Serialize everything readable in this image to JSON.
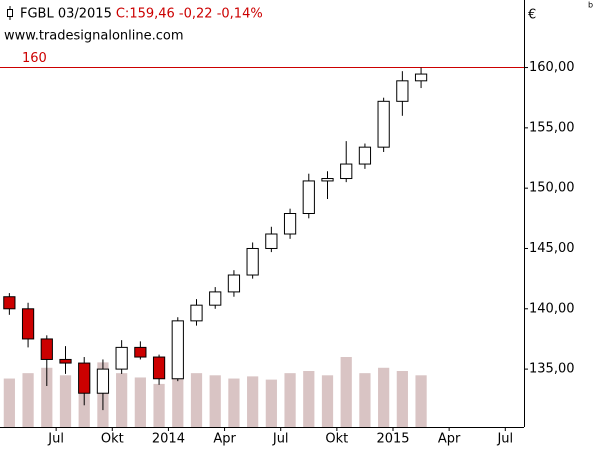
{
  "chart_data": {
    "type": "candlestick",
    "symbol": "FGBL 03/2015",
    "quote": "C:159,46 -0,22 -0,14%",
    "source": "www.tradesignalonline.com",
    "currency": "€",
    "corner_mark": "b",
    "hline": {
      "value": 160,
      "label": "160",
      "color": "#cc0000"
    },
    "x": [
      "2013-04",
      "2013-05",
      "2013-06",
      "2013-07",
      "2013-08",
      "2013-09",
      "2013-10",
      "2013-11",
      "2013-12",
      "2014-01",
      "2014-02",
      "2014-03",
      "2014-04",
      "2014-05",
      "2014-06",
      "2014-07",
      "2014-08",
      "2014-09",
      "2014-10",
      "2014-11",
      "2014-12",
      "2015-01",
      "2015-02"
    ],
    "open": [
      141.0,
      140.0,
      137.5,
      135.8,
      135.5,
      133.0,
      135.0,
      136.8,
      136.0,
      134.2,
      139.0,
      140.3,
      141.4,
      142.8,
      145.0,
      146.2,
      147.9,
      150.6,
      150.8,
      152.0,
      153.4,
      157.2,
      158.9
    ],
    "high": [
      141.3,
      140.5,
      137.8,
      136.9,
      136.0,
      135.8,
      137.4,
      137.3,
      136.2,
      139.3,
      140.8,
      141.8,
      143.2,
      145.5,
      146.8,
      148.3,
      151.2,
      151.4,
      153.9,
      153.7,
      157.5,
      159.7,
      160.0
    ],
    "low": [
      139.5,
      136.8,
      133.6,
      134.6,
      132.0,
      131.6,
      134.6,
      135.8,
      133.7,
      134.0,
      138.6,
      140.0,
      141.0,
      142.5,
      144.7,
      145.8,
      147.5,
      149.1,
      150.5,
      151.6,
      153.0,
      156.0,
      158.3
    ],
    "close": [
      140.0,
      137.5,
      135.8,
      135.5,
      133.0,
      135.0,
      136.8,
      136.0,
      134.2,
      139.0,
      140.3,
      141.4,
      142.8,
      145.0,
      146.2,
      147.9,
      150.6,
      150.8,
      152.0,
      153.4,
      157.2,
      158.9,
      159.46
    ],
    "volume": [
      45,
      50,
      55,
      48,
      52,
      60,
      50,
      46,
      40,
      55,
      50,
      48,
      45,
      47,
      44,
      50,
      52,
      48,
      65,
      50,
      55,
      52,
      48
    ],
    "up_color": "#ffffff",
    "down_color": "#cc0000",
    "volume_color": "#d9c4c4",
    "xlim": [
      "2013-04",
      "2015-08"
    ],
    "xticks": [
      {
        "value": "2013-07",
        "label": "Jul"
      },
      {
        "value": "2013-10",
        "label": "Okt"
      },
      {
        "value": "2014-01",
        "label": "2014"
      },
      {
        "value": "2014-04",
        "label": "Apr"
      },
      {
        "value": "2014-07",
        "label": "Jul"
      },
      {
        "value": "2014-10",
        "label": "Okt"
      },
      {
        "value": "2015-01",
        "label": "2015"
      },
      {
        "value": "2015-04",
        "label": "Apr"
      },
      {
        "value": "2015-07",
        "label": "Jul"
      }
    ],
    "ylim": [
      130.2,
      165.6
    ],
    "yticks": [
      {
        "value": 135,
        "label": "135,00"
      },
      {
        "value": 140,
        "label": "140,00"
      },
      {
        "value": 145,
        "label": "145,00"
      },
      {
        "value": 150,
        "label": "150,00"
      },
      {
        "value": 155,
        "label": "155,00"
      },
      {
        "value": 160,
        "label": "160,00"
      }
    ]
  }
}
